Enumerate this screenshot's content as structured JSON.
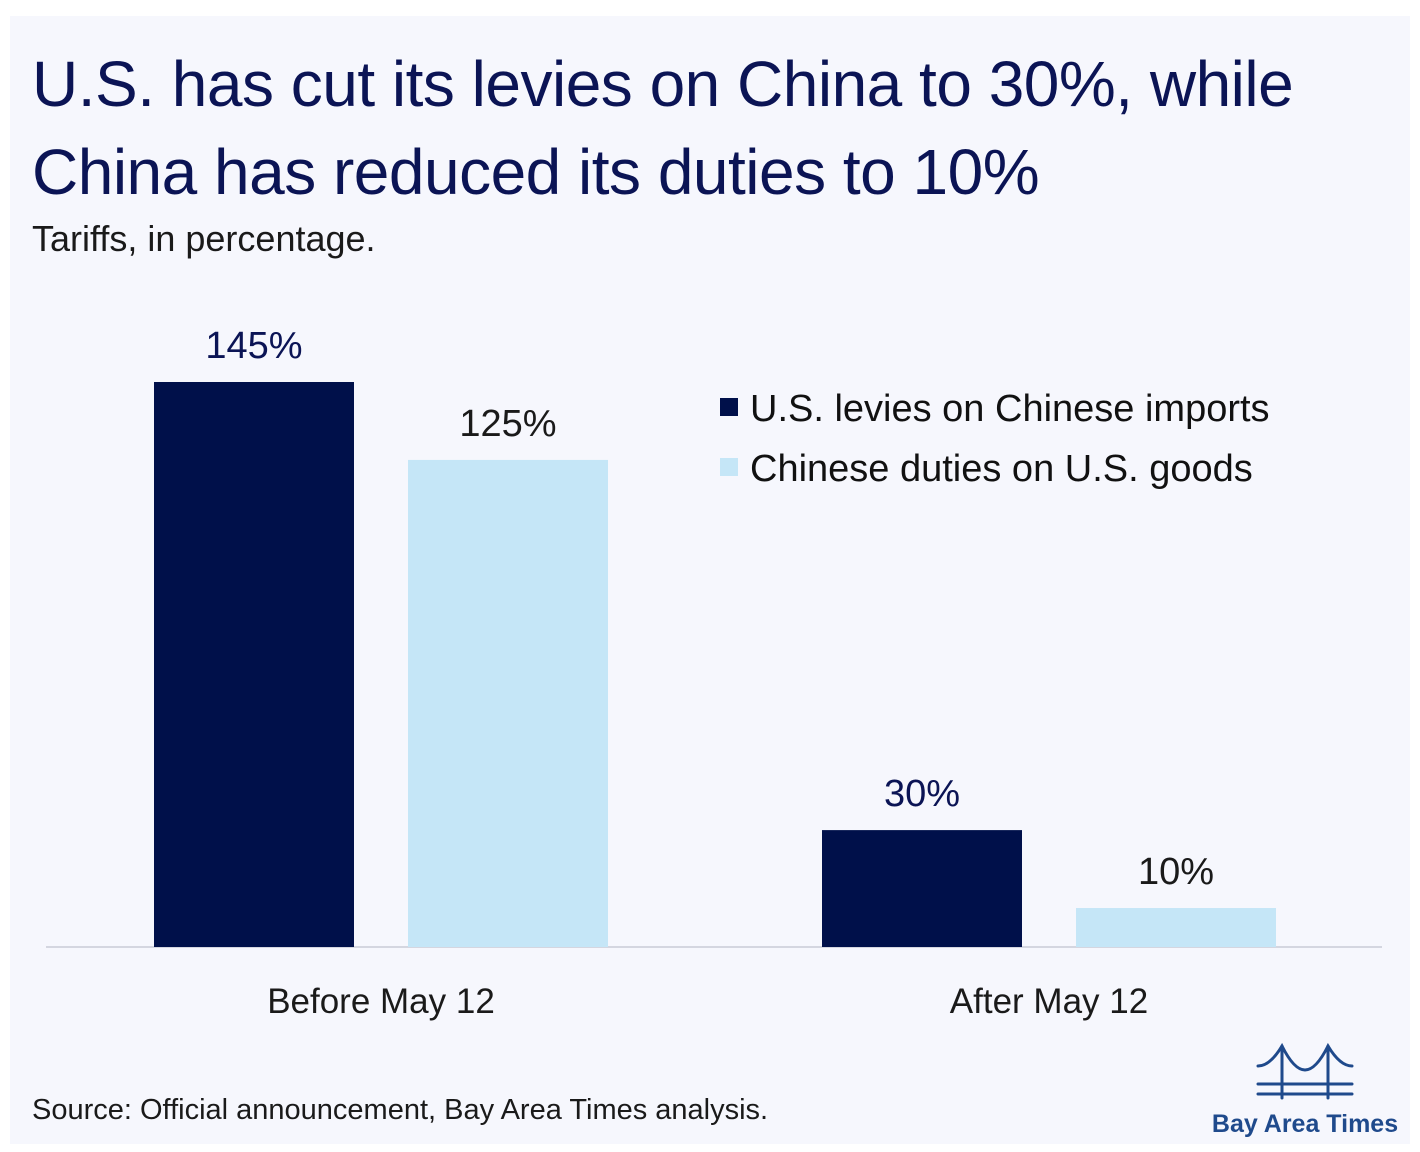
{
  "header": {
    "title": "U.S. has cut its levies on China to 30%, while China has reduced its duties to 10%",
    "subtitle": "Tariffs, in percentage."
  },
  "footer": {
    "source": "Source: Official announcement, Bay Area Times analysis.",
    "logo_text": "Bay Area Times",
    "logo_icon": "bridge-icon"
  },
  "colors": {
    "background": "#f6f7fd",
    "series_us": "#00104a",
    "series_china": "#c5e6f7",
    "title": "#0b1455"
  },
  "chart_data": {
    "type": "bar",
    "categories": [
      "Before May 12",
      "After May 12"
    ],
    "series": [
      {
        "name": "U.S. levies on Chinese imports",
        "values": [
          145,
          30
        ],
        "labels": [
          "145%",
          "30%"
        ],
        "color": "#00104a"
      },
      {
        "name": "Chinese duties on U.S. goods",
        "values": [
          125,
          10
        ],
        "labels": [
          "125%",
          "10%"
        ],
        "color": "#c5e6f7"
      }
    ],
    "title": "U.S. has cut its levies on China to 30%, while China has reduced its duties to 10%",
    "subtitle": "Tariffs, in percentage.",
    "xlabel": "",
    "ylabel": "",
    "ylim": [
      0,
      145
    ],
    "grid": false,
    "legend_position": "top-right"
  }
}
